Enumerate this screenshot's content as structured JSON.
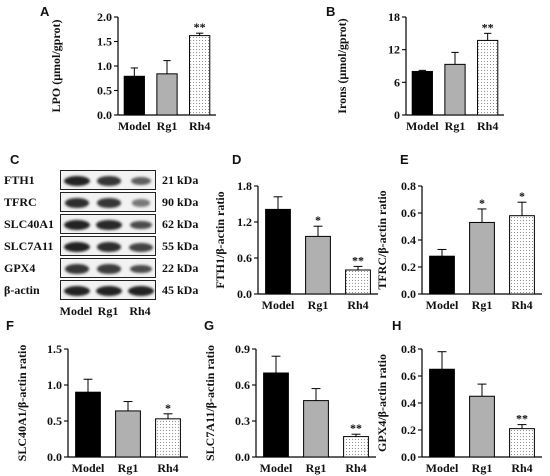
{
  "panels": {
    "A": "A",
    "B": "B",
    "C": "C",
    "D": "D",
    "E": "E",
    "F": "F",
    "G": "G",
    "H": "H"
  },
  "blot": {
    "proteins": [
      {
        "name": "FTH1",
        "kda": "21 kDa",
        "intensity": [
          1.0,
          0.85,
          0.55
        ]
      },
      {
        "name": "TFRC",
        "kda": "90 kDa",
        "intensity": [
          0.9,
          0.85,
          0.35
        ]
      },
      {
        "name": "SLC40A1",
        "kda": "62 kDa",
        "intensity": [
          1.0,
          0.95,
          0.7
        ]
      },
      {
        "name": "SLC7A11",
        "kda": "55 kDa",
        "intensity": [
          1.0,
          0.9,
          0.75
        ]
      },
      {
        "name": "GPX4",
        "kda": "22 kDa",
        "intensity": [
          0.85,
          0.8,
          0.7
        ]
      },
      {
        "name": "β-actin",
        "kda": "45 kDa",
        "intensity": [
          1.0,
          1.0,
          1.0
        ]
      }
    ],
    "groups": [
      "Model",
      "Rg1",
      "Rh4"
    ]
  },
  "colors": {
    "model": "#000000",
    "rg1": "#b0b0b0",
    "rh4": "#ffffff"
  },
  "chart_data": [
    {
      "panel": "A",
      "type": "bar",
      "categories": [
        "Model",
        "Rg1",
        "Rh4"
      ],
      "values": [
        0.79,
        0.84,
        1.62
      ],
      "errors": [
        0.17,
        0.27,
        0.05
      ],
      "significance": [
        "",
        "",
        "**"
      ],
      "ylabel": "LPO (μmol/gprot)",
      "ylim": [
        0,
        2.0
      ],
      "yticks": [
        0.0,
        0.5,
        1.0,
        1.5,
        2.0
      ],
      "yticklabels": [
        "0.0",
        "0.5",
        "1.0",
        "1.5",
        "2.0"
      ]
    },
    {
      "panel": "B",
      "type": "bar",
      "categories": [
        "Model",
        "Rg1",
        "Rh4"
      ],
      "values": [
        8.0,
        9.3,
        13.7
      ],
      "errors": [
        0.2,
        2.2,
        1.3
      ],
      "significance": [
        "",
        "",
        "**"
      ],
      "ylabel": "Irons (μmol/gprot)",
      "ylim": [
        0,
        18
      ],
      "yticks": [
        0,
        6,
        12,
        18
      ],
      "yticklabels": [
        "0",
        "6",
        "12",
        "18"
      ]
    },
    {
      "panel": "D",
      "type": "bar",
      "categories": [
        "Model",
        "Rg1",
        "Rh4"
      ],
      "values": [
        1.41,
        0.96,
        0.4
      ],
      "errors": [
        0.21,
        0.17,
        0.06
      ],
      "significance": [
        "",
        "*",
        "**"
      ],
      "ylabel": "FTH1/β-actin ratio",
      "ylim": [
        0,
        1.8
      ],
      "yticks": [
        0.0,
        0.6,
        1.2,
        1.8
      ],
      "yticklabels": [
        "0.0",
        "0.6",
        "1.2",
        "1.8"
      ]
    },
    {
      "panel": "E",
      "type": "bar",
      "categories": [
        "Model",
        "Rg1",
        "Rh4"
      ],
      "values": [
        0.28,
        0.53,
        0.58
      ],
      "errors": [
        0.05,
        0.1,
        0.1
      ],
      "significance": [
        "",
        "*",
        "*"
      ],
      "ylabel": "TFRC/β-actin ratio",
      "ylim": [
        0,
        0.8
      ],
      "yticks": [
        0.0,
        0.2,
        0.4,
        0.6,
        0.8
      ],
      "yticklabels": [
        "0.0",
        "0.2",
        "0.4",
        "0.6",
        "0.8"
      ]
    },
    {
      "panel": "F",
      "type": "bar",
      "categories": [
        "Model",
        "Rg1",
        "Rh4"
      ],
      "values": [
        0.9,
        0.64,
        0.53
      ],
      "errors": [
        0.18,
        0.13,
        0.07
      ],
      "significance": [
        "",
        "",
        "*"
      ],
      "ylabel": "SLC40A1/β-actin ratio",
      "ylim": [
        0,
        1.5
      ],
      "yticks": [
        0.0,
        0.5,
        1.0,
        1.5
      ],
      "yticklabels": [
        "0.0",
        "0.5",
        "1.0",
        "1.5"
      ]
    },
    {
      "panel": "G",
      "type": "bar",
      "categories": [
        "Model",
        "Rg1",
        "Rh4"
      ],
      "values": [
        0.7,
        0.47,
        0.17
      ],
      "errors": [
        0.14,
        0.1,
        0.02
      ],
      "significance": [
        "",
        "",
        "**"
      ],
      "ylabel": "SLC7A11/β-actin ratio",
      "ylim": [
        0,
        0.9
      ],
      "yticks": [
        0.0,
        0.3,
        0.6,
        0.9
      ],
      "yticklabels": [
        "0.0",
        "0.3",
        "0.6",
        "0.9"
      ]
    },
    {
      "panel": "H",
      "type": "bar",
      "categories": [
        "Model",
        "Rg1",
        "Rh4"
      ],
      "values": [
        0.65,
        0.45,
        0.21
      ],
      "errors": [
        0.13,
        0.09,
        0.03
      ],
      "significance": [
        "",
        "",
        "**"
      ],
      "ylabel": "GPX4/β-actin ratio",
      "ylim": [
        0,
        0.8
      ],
      "yticks": [
        0.0,
        0.2,
        0.4,
        0.6,
        0.8
      ],
      "yticklabels": [
        "0.0",
        "0.2",
        "0.4",
        "0.6",
        "0.8"
      ]
    }
  ]
}
